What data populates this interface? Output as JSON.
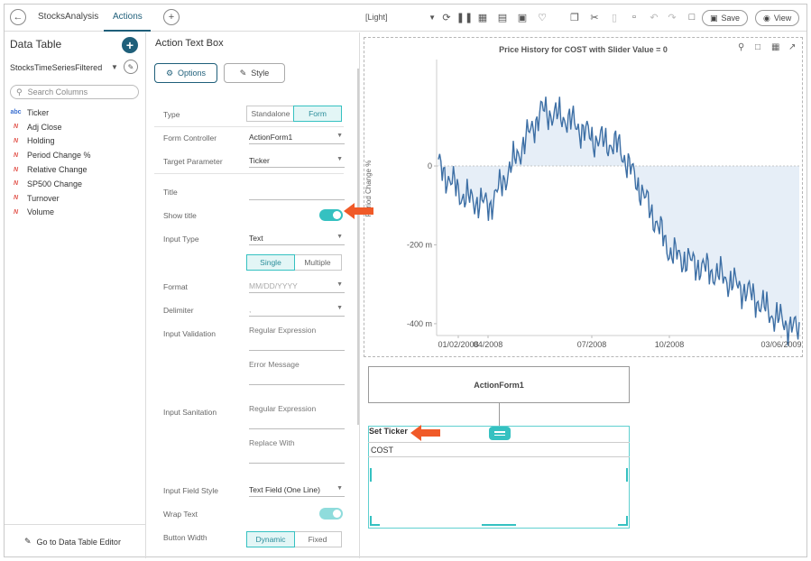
{
  "topbar": {
    "tabs": [
      "StocksAnalysis",
      "Actions"
    ],
    "active_tab": "Actions",
    "theme": "[Light]",
    "save_label": "Save",
    "view_label": "View"
  },
  "left_panel": {
    "title": "Data Table",
    "source": "StocksTimeSeriesFiltered",
    "search_placeholder": "Search Columns",
    "columns": [
      {
        "type": "abc",
        "name": "Ticker"
      },
      {
        "type": "num",
        "name": "Adj Close"
      },
      {
        "type": "num",
        "name": "Holding"
      },
      {
        "type": "num",
        "name": "Period Change %"
      },
      {
        "type": "num",
        "name": "Relative Change"
      },
      {
        "type": "num",
        "name": "SP500 Change"
      },
      {
        "type": "num",
        "name": "Turnover"
      },
      {
        "type": "num",
        "name": "Volume"
      }
    ],
    "footer": "Go to Data Table Editor"
  },
  "settings": {
    "title": "Action Text Box",
    "options_label": "Options",
    "style_label": "Style",
    "type_label": "Type",
    "type_options": [
      "Standalone",
      "Form"
    ],
    "type_selected": "Form",
    "form_controller_label": "Form Controller",
    "form_controller_value": "ActionForm1",
    "target_parameter_label": "Target Parameter",
    "target_parameter_value": "Ticker",
    "title_label": "Title",
    "show_title_label": "Show title",
    "input_type_label": "Input Type",
    "input_type_value": "Text",
    "input_mode_options": [
      "Single",
      "Multiple"
    ],
    "input_mode_selected": "Single",
    "format_label": "Format",
    "format_value": "MM/DD/YYYY",
    "delimiter_label": "Delimiter",
    "delimiter_value": ",",
    "input_validation_label": "Input Validation",
    "regex_placeholder": "Regular Expression",
    "error_message_placeholder": "Error Message",
    "input_sanitation_label": "Input Sanitation",
    "regex2_placeholder": "Regular Expression",
    "replace_with_placeholder": "Replace With",
    "input_field_style_label": "Input Field Style",
    "input_field_style_value": "Text Field (One Line)",
    "wrap_text_label": "Wrap Text",
    "button_width_label": "Button Width",
    "button_width_options": [
      "Dynamic",
      "Fixed"
    ],
    "button_width_selected": "Dynamic"
  },
  "chart_data": {
    "type": "area",
    "title": "Price History for COST with Slider Value = 0",
    "ylabel": "Period Change %",
    "xlabel": "",
    "x_ticks": [
      "01/02/2008",
      "04/2008",
      "07/2008",
      "10/2008",
      "03/06/2009"
    ],
    "y_ticks": [
      "0",
      "-200 m",
      "-400 m"
    ],
    "ylim": [
      -0.43,
      0.27
    ],
    "x": [
      "01/2008",
      "02/2008",
      "03/2008",
      "04/2008",
      "05/2008",
      "06/2008",
      "07/2008",
      "08/2008",
      "09/2008",
      "10/2008",
      "11/2008",
      "12/2008",
      "01/2009",
      "02/2009",
      "03/2009"
    ],
    "values": [
      0.0,
      -0.08,
      -0.1,
      0.02,
      0.14,
      0.12,
      0.07,
      0.05,
      -0.08,
      -0.22,
      -0.25,
      -0.28,
      -0.32,
      -0.38,
      -0.42
    ],
    "color": "#3d6fa5",
    "fill_color": "#e6eef7"
  },
  "form": {
    "name": "ActionForm1",
    "textbox_title": "Set Ticker",
    "textbox_value": "COST"
  },
  "colors": {
    "accent": "#1f5f7a",
    "teal": "#35c1c1",
    "arrow": "#f05a28"
  }
}
